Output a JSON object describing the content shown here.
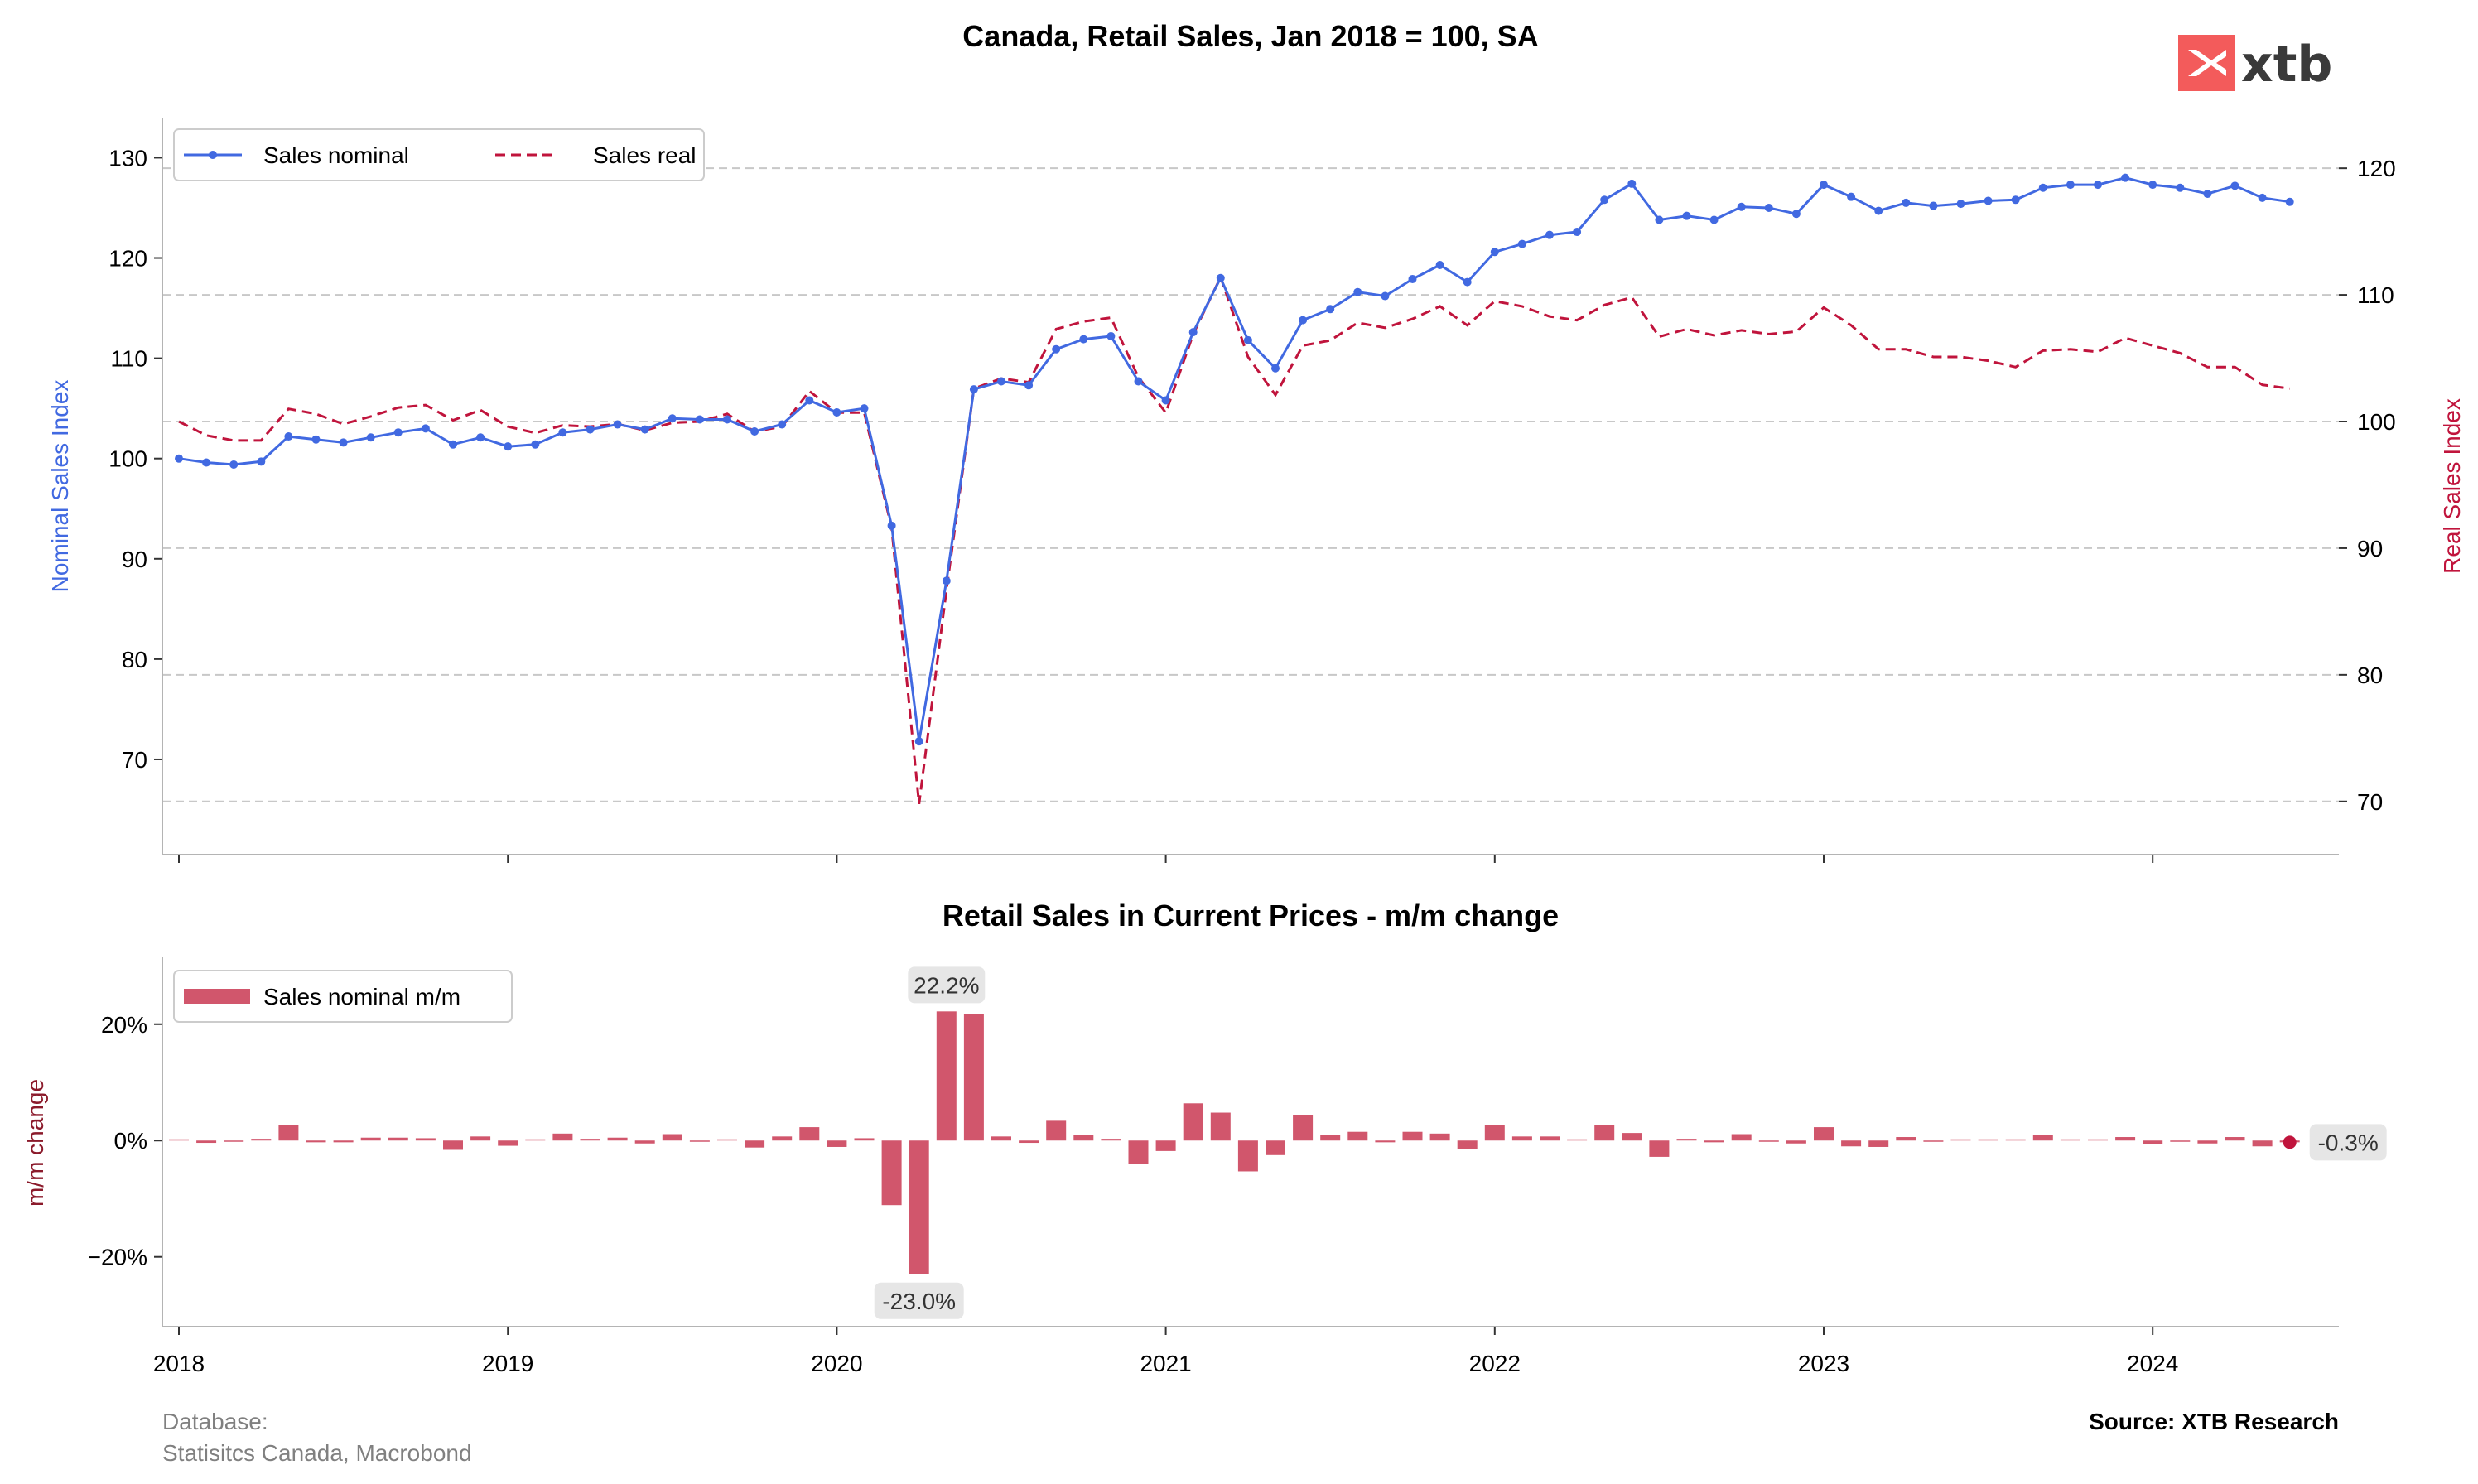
{
  "colors": {
    "nominal": "#4169e1",
    "real": "#c0143c",
    "bar": "#d1566c",
    "grid": "#c8c8c8",
    "axis": "#b4b4b4",
    "logo_red": "#f35b5b",
    "logo_text": "#3a3a3a",
    "annot_box": "#e6e6e6"
  },
  "logo": {
    "text": "xtb",
    "icon": "xtb-logo-icon"
  },
  "footer": {
    "database_label": "Database:",
    "database_sources": "Statisitcs Canada, Macrobond",
    "source": "Source: XTB Research"
  },
  "chart_data": [
    {
      "type": "line",
      "title": "Canada, Retail Sales, Jan 2018 = 100, SA",
      "ylabel": "Nominal Sales Index",
      "y2label": "Real Sales Index",
      "ylim": [
        60.5,
        134
      ],
      "y2lim": [
        65.8,
        124
      ],
      "yticks": [
        70,
        80,
        90,
        100,
        110,
        120,
        130
      ],
      "y2ticks": [
        70,
        80,
        90,
        100,
        110,
        120
      ],
      "x_ticks": [
        "2018",
        "2019",
        "2020",
        "2021",
        "2022",
        "2023",
        "2024"
      ],
      "x_start": "2018-01",
      "grid": "horizontal dashed (right axis)",
      "legend": "top-left",
      "series": [
        {
          "name": "Sales nominal",
          "axis": "left",
          "style": "solid line with markers",
          "values": [
            100.0,
            99.6,
            99.4,
            99.7,
            102.2,
            101.9,
            101.6,
            102.1,
            102.6,
            103.0,
            101.4,
            102.1,
            101.2,
            101.4,
            102.6,
            102.9,
            103.4,
            102.9,
            104.0,
            103.9,
            103.9,
            102.7,
            103.4,
            105.8,
            104.6,
            105.0,
            93.3,
            71.8,
            87.8,
            106.9,
            107.7,
            107.3,
            110.9,
            111.9,
            112.2,
            107.7,
            105.8,
            112.6,
            118.0,
            111.8,
            109.0,
            113.8,
            114.9,
            116.6,
            116.2,
            117.9,
            119.3,
            117.6,
            120.6,
            121.4,
            122.3,
            122.6,
            125.8,
            127.4,
            123.8,
            124.2,
            123.8,
            125.1,
            125.0,
            124.4,
            127.3,
            126.1,
            124.7,
            125.5,
            125.2,
            125.4,
            125.7,
            125.8,
            127.0,
            127.3,
            127.3,
            128.0,
            127.3,
            127.0,
            126.4,
            127.2,
            126.0,
            125.6
          ]
        },
        {
          "name": "Sales real",
          "axis": "right",
          "style": "dashed line",
          "values": [
            100.0,
            98.9,
            98.5,
            98.5,
            101.0,
            100.6,
            99.8,
            100.4,
            101.1,
            101.3,
            100.1,
            100.9,
            99.6,
            99.1,
            99.7,
            99.6,
            99.8,
            99.3,
            99.9,
            100.0,
            100.6,
            99.2,
            99.6,
            102.4,
            100.7,
            100.7,
            91.6,
            69.8,
            86.7,
            102.6,
            103.4,
            103.1,
            107.3,
            107.9,
            108.2,
            103.5,
            100.7,
            106.9,
            111.4,
            105.1,
            102.1,
            106.0,
            106.4,
            107.8,
            107.4,
            108.1,
            109.1,
            107.6,
            109.5,
            109.1,
            108.3,
            108.0,
            109.2,
            109.8,
            106.7,
            107.3,
            106.8,
            107.2,
            106.9,
            107.1,
            109.0,
            107.6,
            105.7,
            105.7,
            105.1,
            105.1,
            104.8,
            104.3,
            105.6,
            105.7,
            105.5,
            106.6,
            106.0,
            105.4,
            104.3,
            104.3,
            102.9,
            102.6
          ]
        }
      ]
    },
    {
      "type": "bar",
      "title": "Retail Sales in Current Prices - m/m change",
      "ylabel": "m/m change",
      "ylim": [
        -32,
        31.5
      ],
      "yticks": [
        -20,
        0,
        20
      ],
      "ytick_labels": [
        "−20%",
        "0%",
        "20%"
      ],
      "x_ticks": [
        "2018",
        "2019",
        "2020",
        "2021",
        "2022",
        "2023",
        "2024"
      ],
      "x_start": "2018-01",
      "legend": "top-left",
      "series": [
        {
          "name": "Sales nominal m/m",
          "unit": "%",
          "values": [
            0.0,
            -0.4,
            -0.2,
            0.3,
            2.6,
            -0.3,
            -0.3,
            0.5,
            0.5,
            0.4,
            -1.6,
            0.7,
            -0.9,
            0.2,
            1.2,
            0.3,
            0.5,
            -0.5,
            1.1,
            -0.1,
            0.0,
            -1.2,
            0.7,
            2.3,
            -1.1,
            0.4,
            -11.1,
            -23.0,
            22.2,
            21.8,
            0.7,
            -0.4,
            3.4,
            0.9,
            0.3,
            -4.0,
            -1.8,
            6.4,
            4.8,
            -5.3,
            -2.5,
            4.4,
            1.0,
            1.5,
            -0.3,
            1.5,
            1.2,
            -1.4,
            2.6,
            0.7,
            0.7,
            0.2,
            2.6,
            1.3,
            -2.8,
            0.3,
            -0.3,
            1.1,
            -0.1,
            -0.5,
            2.3,
            -1.0,
            -1.1,
            0.6,
            -0.2,
            0.2,
            0.2,
            0.1,
            1.0,
            0.2,
            0.0,
            0.6,
            -0.6,
            -0.2,
            -0.5,
            0.6,
            -1.0,
            -0.3
          ]
        }
      ],
      "annotations": [
        {
          "text": "22.2%",
          "index": 28,
          "value": 22.2,
          "position": "above"
        },
        {
          "text": "-23.0%",
          "index": 27,
          "value": -23.0,
          "position": "below"
        },
        {
          "text": "-0.3%",
          "index": 77,
          "value": -0.3,
          "position": "right",
          "marker": "dot"
        }
      ]
    }
  ]
}
